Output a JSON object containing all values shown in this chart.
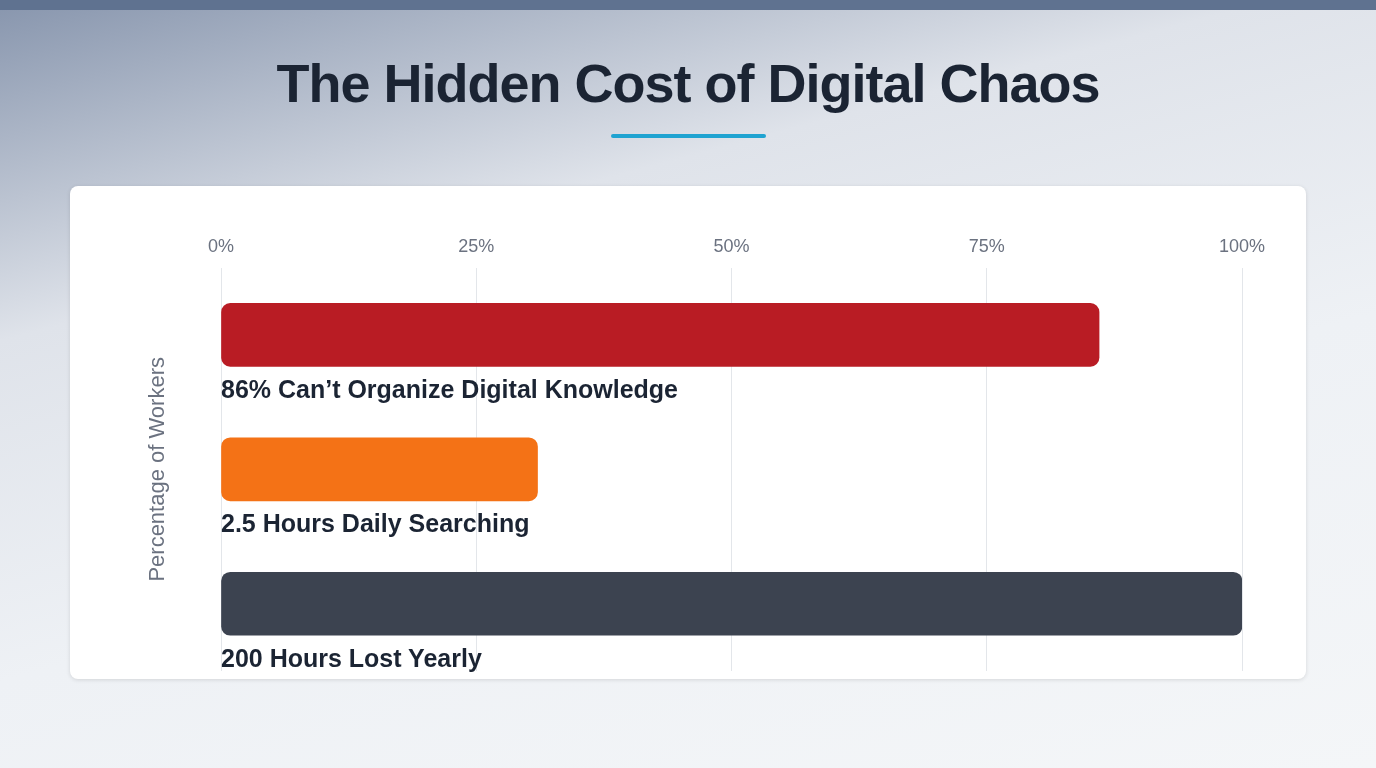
{
  "chart_data": {
    "type": "bar",
    "orientation": "horizontal",
    "title": "The Hidden Cost of Digital Chaos",
    "ylabel": "Percentage of Workers",
    "categories": [
      "86% Can’t Organize Digital Knowledge",
      "2.5 Hours Daily Searching",
      "200 Hours Lost Yearly"
    ],
    "values": [
      86,
      31,
      100
    ],
    "colors": [
      "#b91c24",
      "#f47216",
      "#3c4350"
    ],
    "xlim": [
      0,
      100
    ],
    "xticks": [
      {
        "value": 0,
        "label": "0%"
      },
      {
        "value": 25,
        "label": "25%"
      },
      {
        "value": 50,
        "label": "50%"
      },
      {
        "value": 75,
        "label": "75%"
      },
      {
        "value": 100,
        "label": "100%"
      }
    ],
    "grid": "x",
    "legend": false
  }
}
